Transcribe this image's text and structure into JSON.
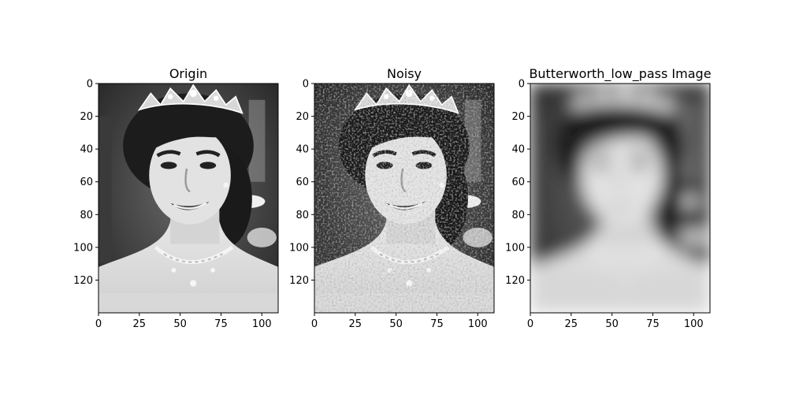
{
  "chart_data": [
    {
      "type": "image",
      "title": "Origin",
      "image_content": "grayscale portrait photograph: smiling woman with dark updo hair, jeweled tiara and necklace, blurred dark background",
      "xlim": [
        0,
        110
      ],
      "ylim": [
        140,
        0
      ],
      "xticks": [
        0,
        25,
        50,
        75,
        100
      ],
      "yticks": [
        0,
        20,
        40,
        60,
        80,
        100,
        120
      ]
    },
    {
      "type": "image",
      "title": "Noisy",
      "image_content": "same portrait with heavy grainy noise added",
      "xlim": [
        0,
        110
      ],
      "ylim": [
        140,
        0
      ],
      "xticks": [
        0,
        25,
        50,
        75,
        100
      ],
      "yticks": [
        0,
        20,
        40,
        60,
        80,
        100,
        120
      ]
    },
    {
      "type": "image",
      "title": "Butterworth_low_pass Image",
      "image_content": "same portrait strongly blurred after low-pass filtering",
      "xlim": [
        0,
        110
      ],
      "ylim": [
        140,
        0
      ],
      "xticks": [
        0,
        25,
        50,
        75,
        100
      ],
      "yticks": [
        0,
        20,
        40,
        60,
        80,
        100,
        120
      ]
    }
  ]
}
